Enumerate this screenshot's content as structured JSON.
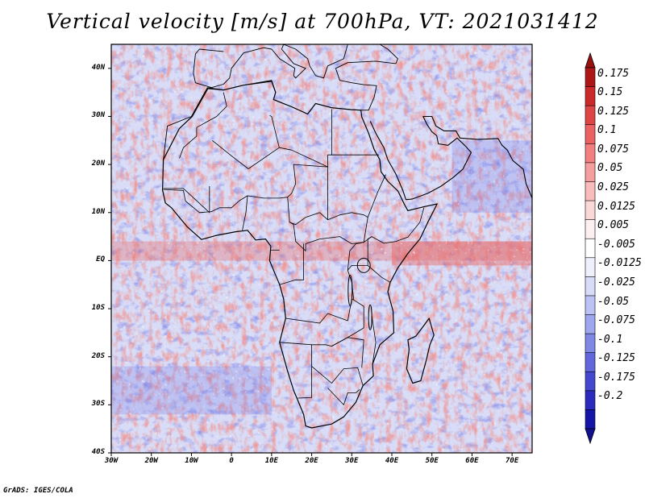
{
  "title": "Vertical velocity [m/s] at 700hPa, VT: 2021031412",
  "credit": "GrADS: IGES/COLA",
  "map": {
    "projection": "latlon",
    "lon_range": [
      -30,
      75
    ],
    "lat_range": [
      -40,
      45
    ],
    "lat_ticks": [
      {
        "value": 40,
        "label": "40N"
      },
      {
        "value": 30,
        "label": "30N"
      },
      {
        "value": 20,
        "label": "20N"
      },
      {
        "value": 10,
        "label": "10N"
      },
      {
        "value": 0,
        "label": "EQ"
      },
      {
        "value": -10,
        "label": "10S"
      },
      {
        "value": -20,
        "label": "20S"
      },
      {
        "value": -30,
        "label": "30S"
      },
      {
        "value": -40,
        "label": "40S"
      }
    ],
    "lon_ticks": [
      {
        "value": -30,
        "label": "30W"
      },
      {
        "value": -20,
        "label": "20W"
      },
      {
        "value": -10,
        "label": "10W"
      },
      {
        "value": 0,
        "label": "0"
      },
      {
        "value": 10,
        "label": "10E"
      },
      {
        "value": 20,
        "label": "20E"
      },
      {
        "value": 30,
        "label": "30E"
      },
      {
        "value": 40,
        "label": "40E"
      },
      {
        "value": 50,
        "label": "50E"
      },
      {
        "value": 60,
        "label": "60E"
      },
      {
        "value": 70,
        "label": "70E"
      }
    ],
    "coastline_outline_lonlat": [
      [
        -17,
        21
      ],
      [
        -16,
        28
      ],
      [
        -10,
        30
      ],
      [
        -6,
        36
      ],
      [
        -2,
        35.5
      ],
      [
        3,
        36.5
      ],
      [
        10,
        37.5
      ],
      [
        11,
        35
      ],
      [
        10.5,
        33.5
      ],
      [
        15,
        32
      ],
      [
        19,
        30.5
      ],
      [
        21,
        32.7
      ],
      [
        25,
        31.8
      ],
      [
        30,
        31.4
      ],
      [
        32.3,
        31.3
      ],
      [
        34.2,
        31.3
      ],
      [
        35.6,
        34
      ],
      [
        36.2,
        36.4
      ],
      [
        33,
        36.6
      ],
      [
        30,
        37
      ],
      [
        27,
        37.5
      ],
      [
        26,
        40
      ],
      [
        29,
        41.2
      ],
      [
        36,
        41.5
      ],
      [
        41,
        41
      ],
      [
        41.5,
        42
      ],
      [
        39,
        44
      ],
      [
        37,
        45
      ],
      [
        29,
        45
      ],
      [
        28,
        42
      ],
      [
        24,
        40.5
      ],
      [
        23,
        38
      ],
      [
        21,
        38.5
      ],
      [
        19.5,
        40.5
      ],
      [
        19,
        42
      ],
      [
        16,
        44
      ],
      [
        13,
        45
      ],
      [
        12.5,
        44
      ],
      [
        15.5,
        41
      ],
      [
        18.5,
        40
      ],
      [
        16,
        38
      ],
      [
        15.5,
        38.5
      ],
      [
        15.8,
        40
      ],
      [
        12,
        42
      ],
      [
        10,
        44
      ],
      [
        8,
        44.3
      ],
      [
        3,
        43.2
      ],
      [
        0,
        40
      ],
      [
        -0.5,
        38
      ],
      [
        -2,
        36.7
      ],
      [
        -5,
        36
      ],
      [
        -9,
        37
      ],
      [
        -9.5,
        39
      ],
      [
        -9,
        43
      ],
      [
        -8,
        44
      ],
      [
        -2,
        43.5
      ],
      [
        -1.5,
        45
      ],
      [
        60,
        45
      ],
      [
        57,
        45
      ],
      [
        56,
        40
      ],
      [
        54,
        37
      ],
      [
        51,
        37
      ],
      [
        50,
        38
      ],
      [
        49,
        40
      ],
      [
        51,
        42
      ],
      [
        53,
        45
      ]
    ],
    "africa_lonlat": [
      [
        -5.9,
        35.8
      ],
      [
        -9.8,
        30
      ],
      [
        -13,
        27.5
      ],
      [
        -17,
        21
      ],
      [
        -17.2,
        14.7
      ],
      [
        -16.5,
        12
      ],
      [
        -15,
        11
      ],
      [
        -13,
        9
      ],
      [
        -11,
        7
      ],
      [
        -7.5,
        4.4
      ],
      [
        -4,
        5.2
      ],
      [
        1,
        6
      ],
      [
        4,
        6.3
      ],
      [
        6,
        4.3
      ],
      [
        8.5,
        4.5
      ],
      [
        9.8,
        3
      ],
      [
        9.5,
        0
      ],
      [
        11,
        -3
      ],
      [
        12,
        -5
      ],
      [
        13,
        -8
      ],
      [
        13.5,
        -12
      ],
      [
        12,
        -17
      ],
      [
        14,
        -23
      ],
      [
        15.5,
        -27
      ],
      [
        16.5,
        -29
      ],
      [
        18,
        -32
      ],
      [
        18.5,
        -34.4
      ],
      [
        20,
        -34.8
      ],
      [
        25,
        -34
      ],
      [
        28,
        -32.5
      ],
      [
        31,
        -29.5
      ],
      [
        32.8,
        -26
      ],
      [
        35.4,
        -24
      ],
      [
        35.2,
        -21.5
      ],
      [
        37,
        -17.5
      ],
      [
        40.5,
        -15
      ],
      [
        40.3,
        -10.5
      ],
      [
        39,
        -6.5
      ],
      [
        39.6,
        -4.5
      ],
      [
        41.5,
        -1.5
      ],
      [
        44,
        1.5
      ],
      [
        47,
        4.5
      ],
      [
        49,
        8
      ],
      [
        51.3,
        11.8
      ],
      [
        48,
        11.2
      ],
      [
        44,
        10.4
      ],
      [
        43.2,
        11.6
      ],
      [
        41.5,
        14.5
      ],
      [
        39,
        16.5
      ],
      [
        37.3,
        18.5
      ],
      [
        37,
        21
      ],
      [
        35.6,
        23.1
      ],
      [
        34.2,
        26.5
      ],
      [
        32.5,
        29.9
      ],
      [
        32.3,
        31.3
      ],
      [
        30,
        31.4
      ],
      [
        25,
        31.8
      ],
      [
        21,
        32.7
      ],
      [
        19,
        30.5
      ],
      [
        15,
        32
      ],
      [
        10.5,
        33.5
      ],
      [
        11,
        35
      ],
      [
        10,
        37.3
      ],
      [
        3,
        36.5
      ],
      [
        -2,
        35.5
      ],
      [
        -5.9,
        35.8
      ]
    ],
    "madagascar_lonlat": [
      [
        49.3,
        -12
      ],
      [
        50.5,
        -15.5
      ],
      [
        49.5,
        -17.5
      ],
      [
        48.5,
        -21
      ],
      [
        47.2,
        -25
      ],
      [
        45.2,
        -25.5
      ],
      [
        43.7,
        -22.5
      ],
      [
        44.3,
        -18.5
      ],
      [
        44,
        -16.5
      ],
      [
        46,
        -15.7
      ],
      [
        48,
        -13.5
      ],
      [
        49.3,
        -12
      ]
    ],
    "arabia_lonlat": [
      [
        34.6,
        29
      ],
      [
        36,
        26.5
      ],
      [
        38,
        23.5
      ],
      [
        39,
        21
      ],
      [
        41,
        18
      ],
      [
        42.8,
        14.5
      ],
      [
        43.5,
        12.7
      ],
      [
        45,
        12.8
      ],
      [
        49,
        14
      ],
      [
        52.3,
        15.5
      ],
      [
        55.3,
        17.3
      ],
      [
        57.7,
        19
      ],
      [
        59.8,
        22.5
      ],
      [
        58.5,
        23.7
      ],
      [
        56.3,
        25.5
      ],
      [
        54,
        24
      ],
      [
        51.6,
        24.3
      ],
      [
        51.2,
        26
      ],
      [
        50,
        26.8
      ],
      [
        48.8,
        28.3
      ],
      [
        47.8,
        30
      ],
      [
        48.5,
        30
      ],
      [
        50,
        30
      ],
      [
        51,
        28
      ],
      [
        53,
        27
      ],
      [
        56,
        27
      ],
      [
        57,
        25.5
      ],
      [
        61.5,
        25.2
      ],
      [
        66.5,
        25.4
      ],
      [
        67.5,
        24
      ],
      [
        68.8,
        23
      ],
      [
        70.2,
        20.8
      ],
      [
        72.8,
        19
      ],
      [
        73.5,
        16
      ],
      [
        74.5,
        14
      ],
      [
        75,
        13
      ]
    ],
    "lakes": [
      "victoria",
      "tanganyika",
      "malawi"
    ]
  },
  "colorbar": {
    "labels": [
      "0.175",
      "0.15",
      "0.125",
      "0.1",
      "0.075",
      "0.05",
      "0.025",
      "0.0125",
      "0.005",
      "-0.005",
      "-0.0125",
      "-0.025",
      "-0.05",
      "-0.075",
      "-0.1",
      "-0.125",
      "-0.175",
      "-0.2"
    ],
    "colors": [
      "#ad1616",
      "#cc2a2a",
      "#de4646",
      "#ea6262",
      "#f28080",
      "#f59e9e",
      "#f8bcbc",
      "#fbd8d8",
      "#fdf0f0",
      "#ffffff",
      "#eef0fc",
      "#d8dcf8",
      "#bcc2f4",
      "#9ea6ee",
      "#8088e6",
      "#6268dc",
      "#4448ce",
      "#2a2abc",
      "#1414a6"
    ],
    "top_arrow_color": "#991010",
    "bottom_arrow_color": "#101090"
  },
  "field": {
    "colors_note": "white/pink/blue noisy vertical velocity",
    "positive_color": "#e66a6a",
    "negative_color": "#6a72e6",
    "strong_positive": "#c41818",
    "strong_negative": "#2a2acc"
  }
}
